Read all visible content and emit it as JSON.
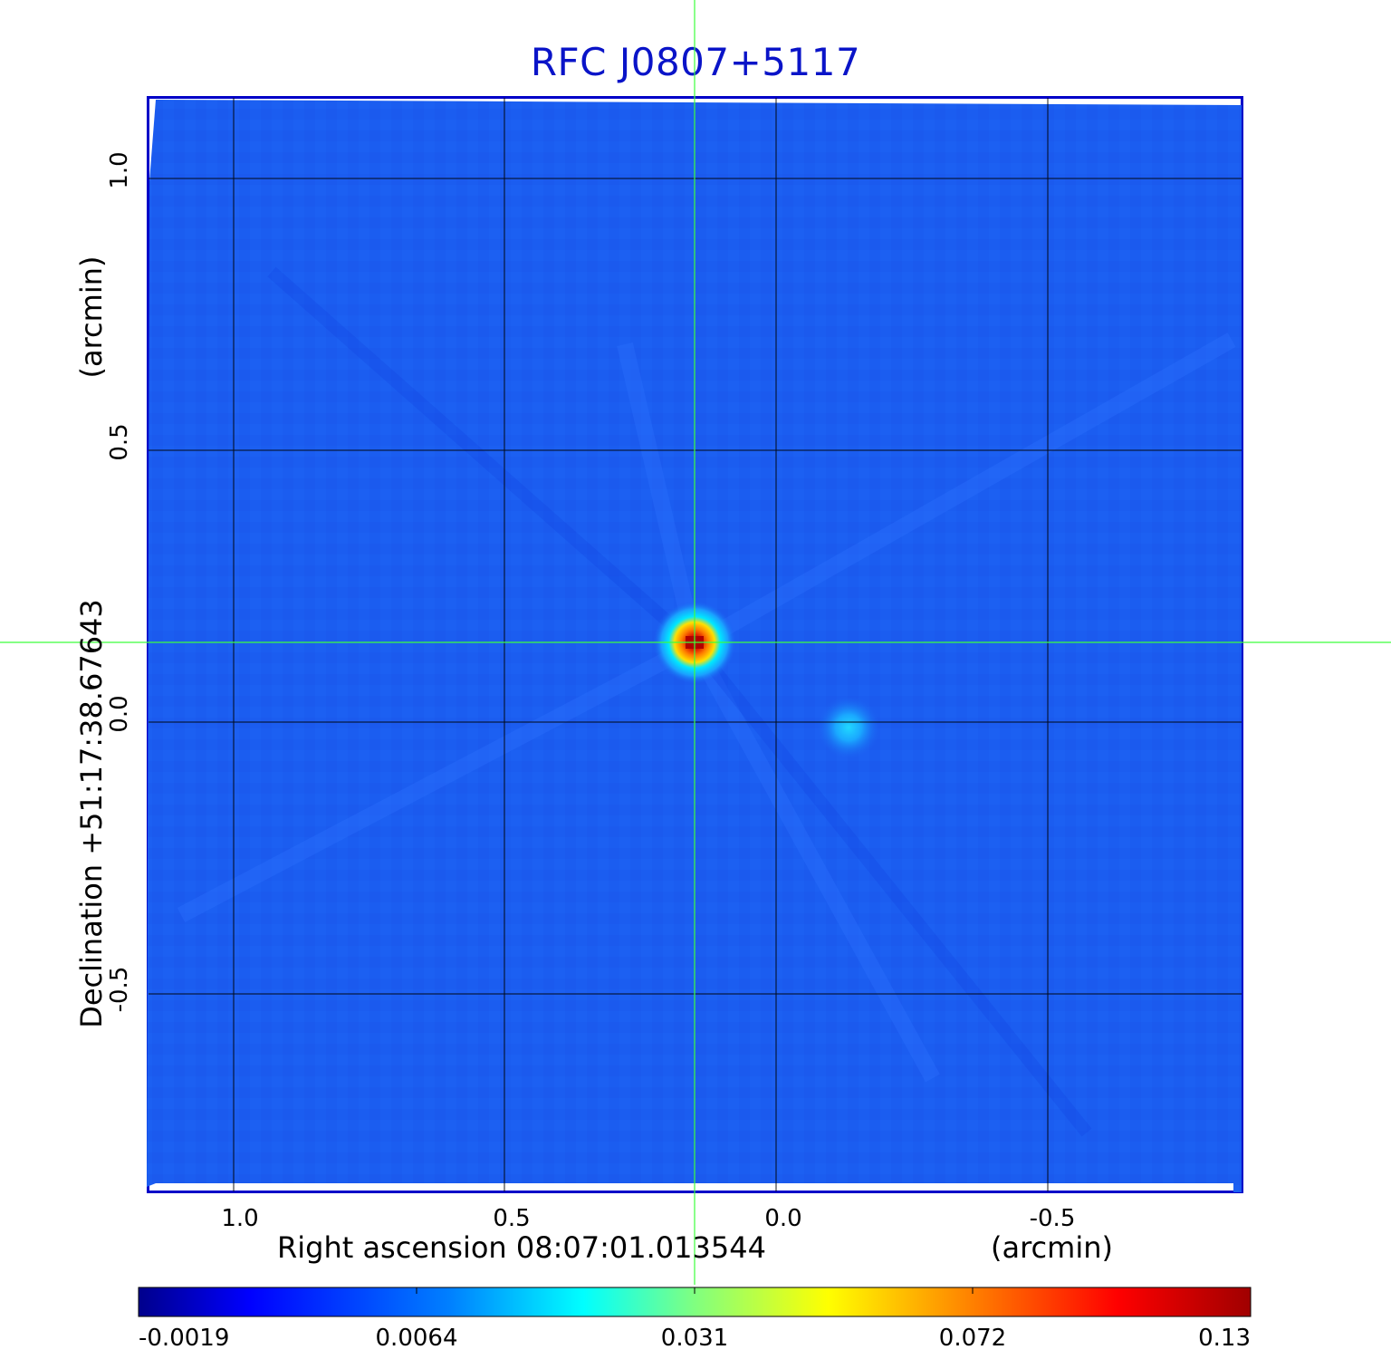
{
  "title": "RFC J0807+5117",
  "x_axis": {
    "label": "Right ascension  08:07:01.013544",
    "unit_label": "(arcmin)",
    "ticks": [
      "1.0",
      "0.5",
      "0.0",
      "-0.5"
    ]
  },
  "y_axis": {
    "label": "Declination  +51:17:38.67643",
    "unit_label": "(arcmin)",
    "ticks": [
      "1.0",
      "0.5",
      "0.0",
      "-0.5"
    ]
  },
  "colorbar": {
    "labels": [
      "-0.0019",
      "0.0064",
      "0.031",
      "0.072",
      "0.13"
    ],
    "colormap": "jet"
  },
  "colors": {
    "title": "#0a14c8",
    "frame": "#0000c8",
    "background_field": "#1a5cf0",
    "crosshair": "#3cff3c",
    "grid": "#000000"
  },
  "image": {
    "type": "radio-map",
    "crosshair": true,
    "grid": true
  }
}
